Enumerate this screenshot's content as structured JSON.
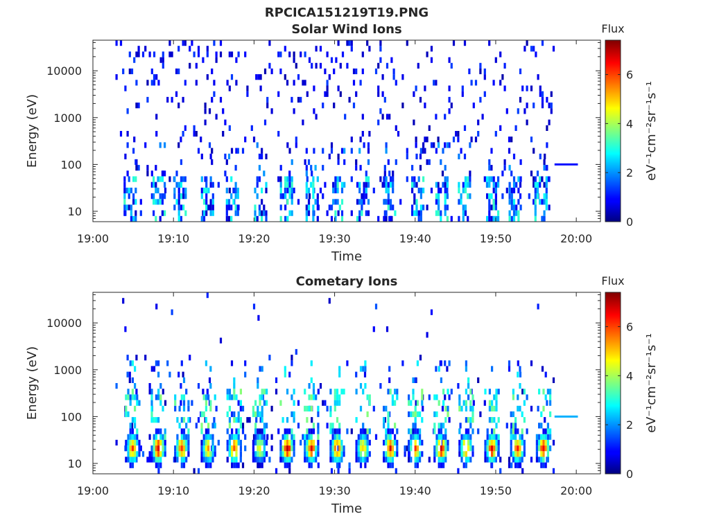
{
  "figure": {
    "filename_title": "RPCICA151219T19.PNG"
  },
  "chart_data": [
    {
      "type": "heatmap",
      "title": "Solar Wind Ions",
      "xlabel": "Time",
      "ylabel": "Energy (eV)",
      "x_tick_labels": [
        "19:00",
        "19:10",
        "19:20",
        "19:30",
        "19:40",
        "19:50",
        "20:00"
      ],
      "x_tick_minutes": [
        0,
        10,
        20,
        30,
        40,
        50,
        60
      ],
      "xlim_minutes": [
        0,
        63
      ],
      "y_tick_labels": [
        "10",
        "100",
        "1000",
        "10000"
      ],
      "y_tick_values": [
        10,
        100,
        1000,
        10000
      ],
      "ylim": [
        6,
        45000
      ],
      "y_scale": "log",
      "colorbar": {
        "label": "Flux",
        "unit": "eV⁻¹cm⁻²sr⁻¹s⁻¹",
        "range": [
          0,
          7.4
        ],
        "ticks": [
          "0",
          "2",
          "4",
          "6"
        ],
        "tick_values": [
          0,
          2,
          4,
          6
        ],
        "colormap": "jet"
      },
      "data_start_minute": 2.8,
      "data_end_minute": 57.2,
      "low_energy_bursts_minutes": [
        4.6,
        8.2,
        10.8,
        14.2,
        17.3,
        20.8,
        24.0,
        27.2,
        30.5,
        33.5,
        36.8,
        40.3,
        43.3,
        46.1,
        49.6,
        52.4,
        55.6
      ],
      "flat_line": {
        "start_minute": 57.3,
        "end_minute": 60.2,
        "energy": 100,
        "flux": 1.0
      }
    },
    {
      "type": "heatmap",
      "title": "Cometary Ions",
      "xlabel": "Time",
      "ylabel": "Energy (eV)",
      "x_tick_labels": [
        "19:00",
        "19:10",
        "19:20",
        "19:30",
        "19:40",
        "19:50",
        "20:00"
      ],
      "x_tick_minutes": [
        0,
        10,
        20,
        30,
        40,
        50,
        60
      ],
      "xlim_minutes": [
        0,
        63
      ],
      "y_tick_labels": [
        "10",
        "100",
        "1000",
        "10000"
      ],
      "y_tick_values": [
        10,
        100,
        1000,
        10000
      ],
      "ylim": [
        6,
        45000
      ],
      "y_scale": "log",
      "colorbar": {
        "label": "Flux",
        "unit": "eV⁻¹cm⁻²sr⁻¹s⁻¹",
        "range": [
          0,
          7.4
        ],
        "ticks": [
          "0",
          "2",
          "4",
          "6"
        ],
        "tick_values": [
          0,
          2,
          4,
          6
        ],
        "colormap": "jet"
      },
      "data_start_minute": 2.8,
      "data_end_minute": 57.2,
      "bursts": [
        {
          "minute": 4.8,
          "peak_flux": 5.8
        },
        {
          "minute": 8.0,
          "peak_flux": 6.8
        },
        {
          "minute": 10.9,
          "peak_flux": 6.0
        },
        {
          "minute": 14.2,
          "peak_flux": 5.4
        },
        {
          "minute": 17.4,
          "peak_flux": 6.0
        },
        {
          "minute": 20.6,
          "peak_flux": 4.8
        },
        {
          "minute": 24.0,
          "peak_flux": 7.0
        },
        {
          "minute": 27.0,
          "peak_flux": 6.5
        },
        {
          "minute": 30.2,
          "peak_flux": 6.2
        },
        {
          "minute": 33.4,
          "peak_flux": 5.2
        },
        {
          "minute": 36.8,
          "peak_flux": 6.3
        },
        {
          "minute": 39.9,
          "peak_flux": 5.9
        },
        {
          "minute": 43.1,
          "peak_flux": 6.6
        },
        {
          "minute": 46.2,
          "peak_flux": 6.0
        },
        {
          "minute": 49.4,
          "peak_flux": 6.4
        },
        {
          "minute": 52.6,
          "peak_flux": 6.1
        },
        {
          "minute": 55.8,
          "peak_flux": 6.6
        }
      ],
      "flat_line": {
        "start_minute": 57.3,
        "end_minute": 60.2,
        "energy": 100,
        "flux": 2.2
      }
    }
  ]
}
